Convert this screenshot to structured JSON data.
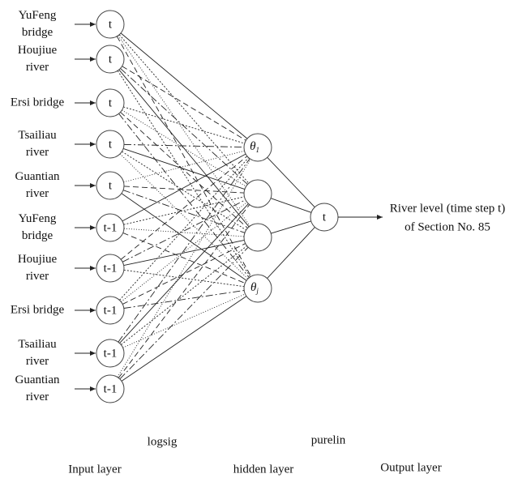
{
  "inputs": [
    {
      "lines": [
        "YuFeng",
        "bridge"
      ],
      "node": "t"
    },
    {
      "lines": [
        "Houjiue",
        "river"
      ],
      "node": "t"
    },
    {
      "lines": [
        "Ersi bridge"
      ],
      "node": "t"
    },
    {
      "lines": [
        "Tsailiau",
        "river"
      ],
      "node": "t"
    },
    {
      "lines": [
        "Guantian",
        "river"
      ],
      "node": "t"
    },
    {
      "lines": [
        "YuFeng",
        "bridge"
      ],
      "node": "t-1"
    },
    {
      "lines": [
        "Houjiue",
        "river"
      ],
      "node": "t-1"
    },
    {
      "lines": [
        "Ersi bridge"
      ],
      "node": "t-1"
    },
    {
      "lines": [
        "Tsailiau",
        "river"
      ],
      "node": "t-1"
    },
    {
      "lines": [
        "Guantian",
        "river"
      ],
      "node": "t-1"
    }
  ],
  "hidden_labels": [
    {
      "symbol": "θ",
      "subscript": "1"
    },
    {
      "symbol": "θ",
      "subscript": "j"
    }
  ],
  "output": {
    "node": "t",
    "target_lines": [
      "River level (time step t)",
      "of Section No. 85"
    ]
  },
  "functions": {
    "hidden": "logsig",
    "output": "purelin"
  },
  "layers": {
    "input": "Input layer",
    "hidden": "hidden layer",
    "output": "Output layer"
  }
}
